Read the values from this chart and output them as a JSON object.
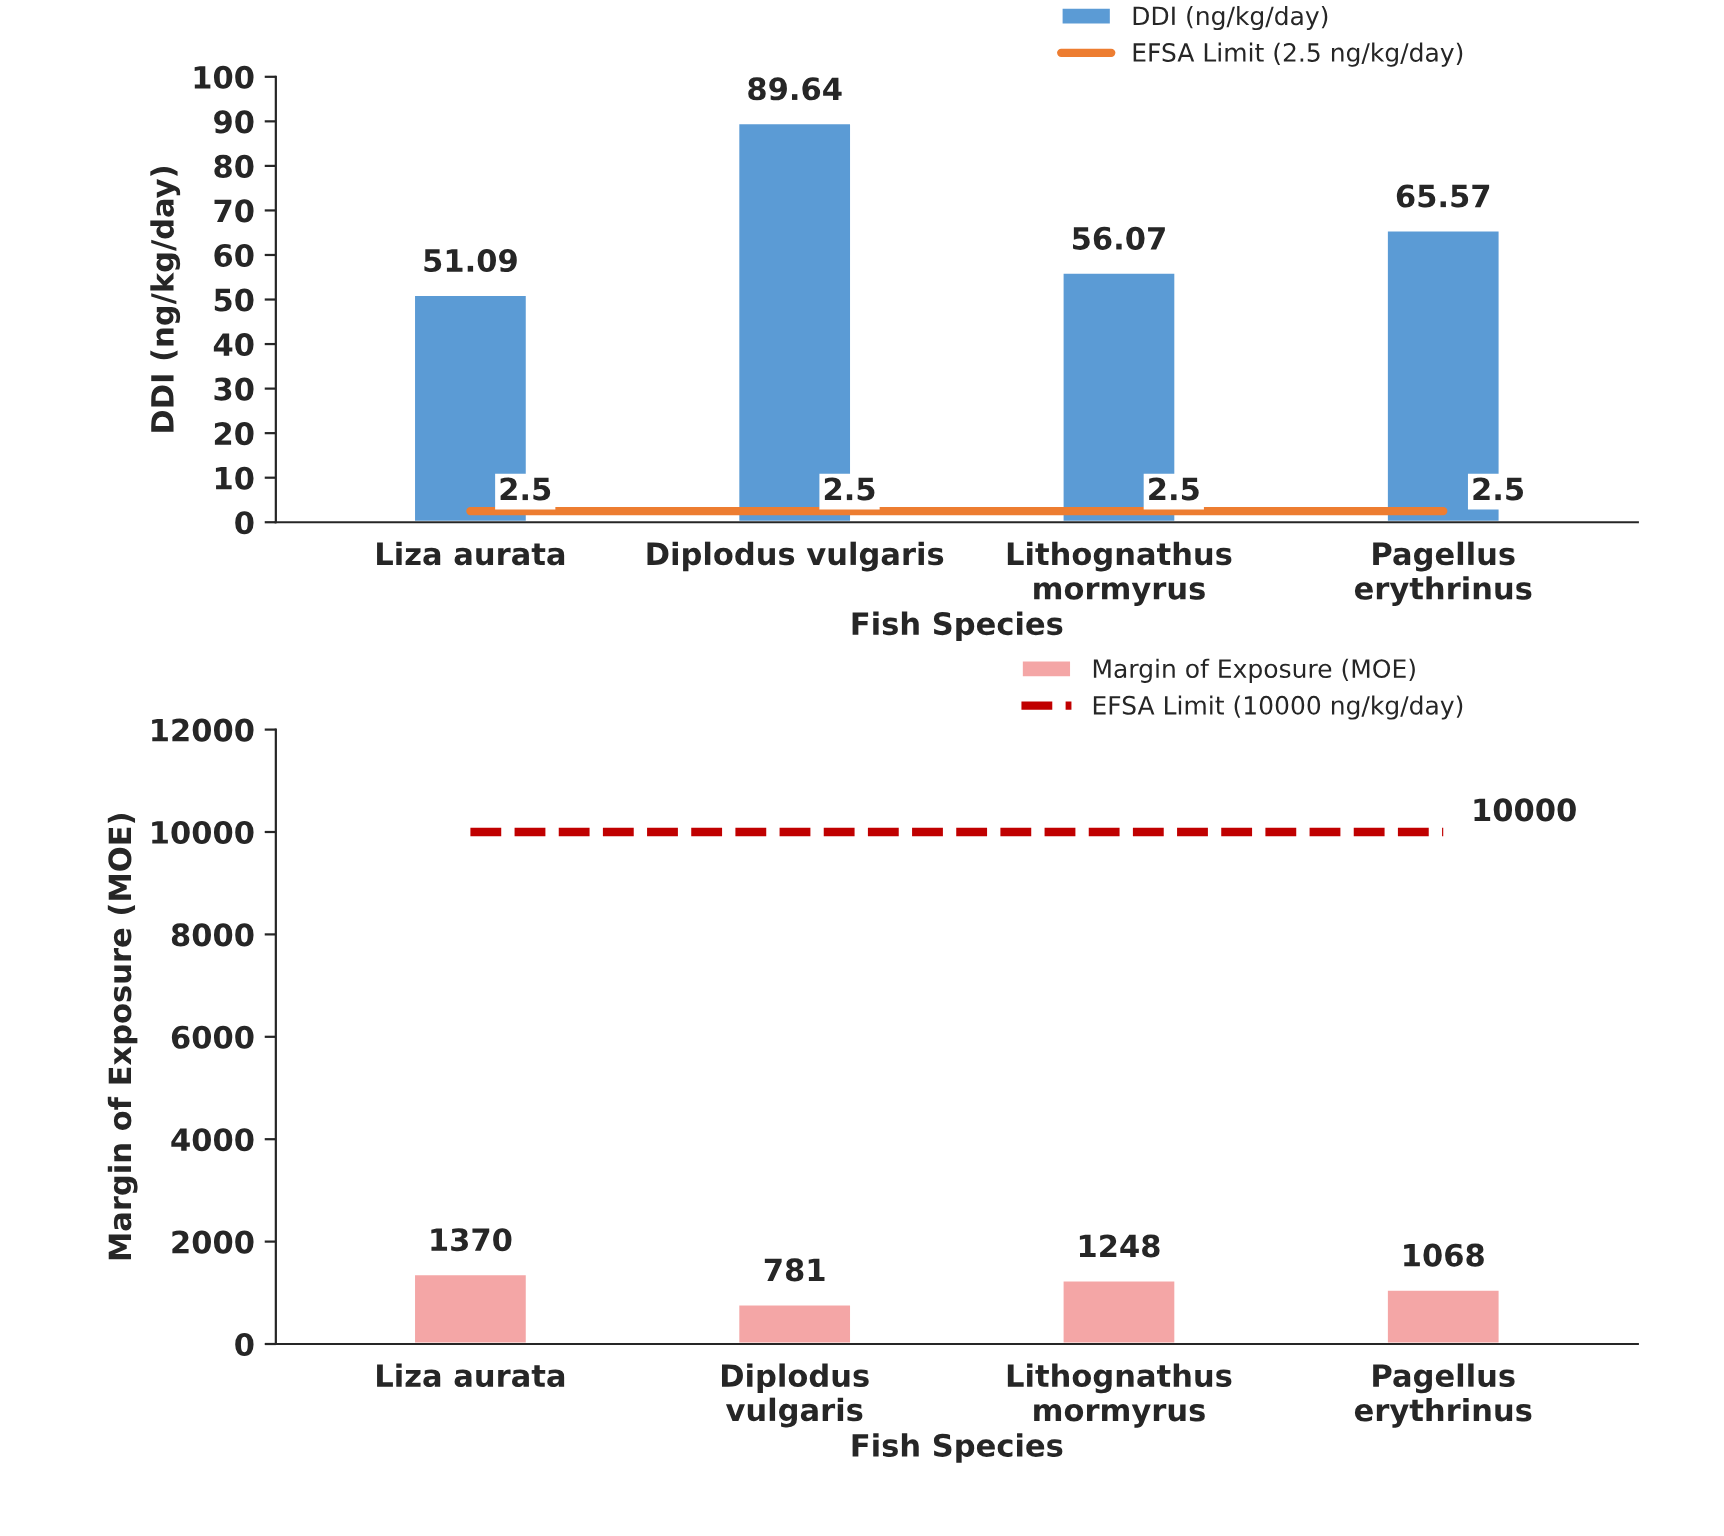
{
  "chart_data": [
    {
      "type": "bar",
      "categories": [
        "Liza aurata",
        "Diplodus vulgaris",
        "Lithognathus\nmormyrus",
        "Pagellus\nerythrinus"
      ],
      "xlabel": "Fish Species",
      "ylabel": "DDI (ng/kg/day)",
      "ylim": [
        0,
        100
      ],
      "yticks": [
        0,
        10,
        20,
        30,
        40,
        50,
        60,
        70,
        80,
        90,
        100
      ],
      "legend": "top right",
      "grid": false,
      "series": [
        {
          "name": "DDI (ng/kg/day)",
          "color": "#5b9bd5",
          "values": [
            51.09,
            89.64,
            56.07,
            65.57
          ],
          "value_labels": [
            "51.09",
            "89.64",
            "56.07",
            "65.57"
          ]
        },
        {
          "name": "EFSA Limit (2.5 ng/kg/day)",
          "type": "line",
          "color": "#ed7d31",
          "line_style": "solid",
          "values": [
            2.5,
            2.5,
            2.5,
            2.5
          ],
          "value_labels": [
            "2.5",
            "2.5",
            "2.5",
            "2.5"
          ]
        }
      ]
    },
    {
      "type": "bar",
      "categories": [
        "Liza aurata",
        "Diplodus\nvulgaris",
        "Lithognathus\nmormyrus",
        "Pagellus\nerythrinus"
      ],
      "xlabel": "Fish Species",
      "ylabel": "Margin of Exposure (MOE)",
      "ylim": [
        0,
        12000
      ],
      "yticks": [
        0,
        2000,
        4000,
        6000,
        8000,
        10000,
        12000
      ],
      "legend": "top right",
      "grid": false,
      "series": [
        {
          "name": "Margin of Exposure (MOE)",
          "color": "#f4a6a6",
          "values": [
            1370,
            781,
            1248,
            1068
          ],
          "value_labels": [
            "1370",
            "781",
            "1248",
            "1068"
          ]
        },
        {
          "name": "EFSA Limit (10000 ng/kg/day)",
          "type": "line",
          "color": "#c00000",
          "line_style": "dashed",
          "values": [
            10000,
            10000,
            10000,
            10000
          ],
          "value_labels": [
            null,
            null,
            null,
            "10000"
          ]
        }
      ]
    }
  ]
}
